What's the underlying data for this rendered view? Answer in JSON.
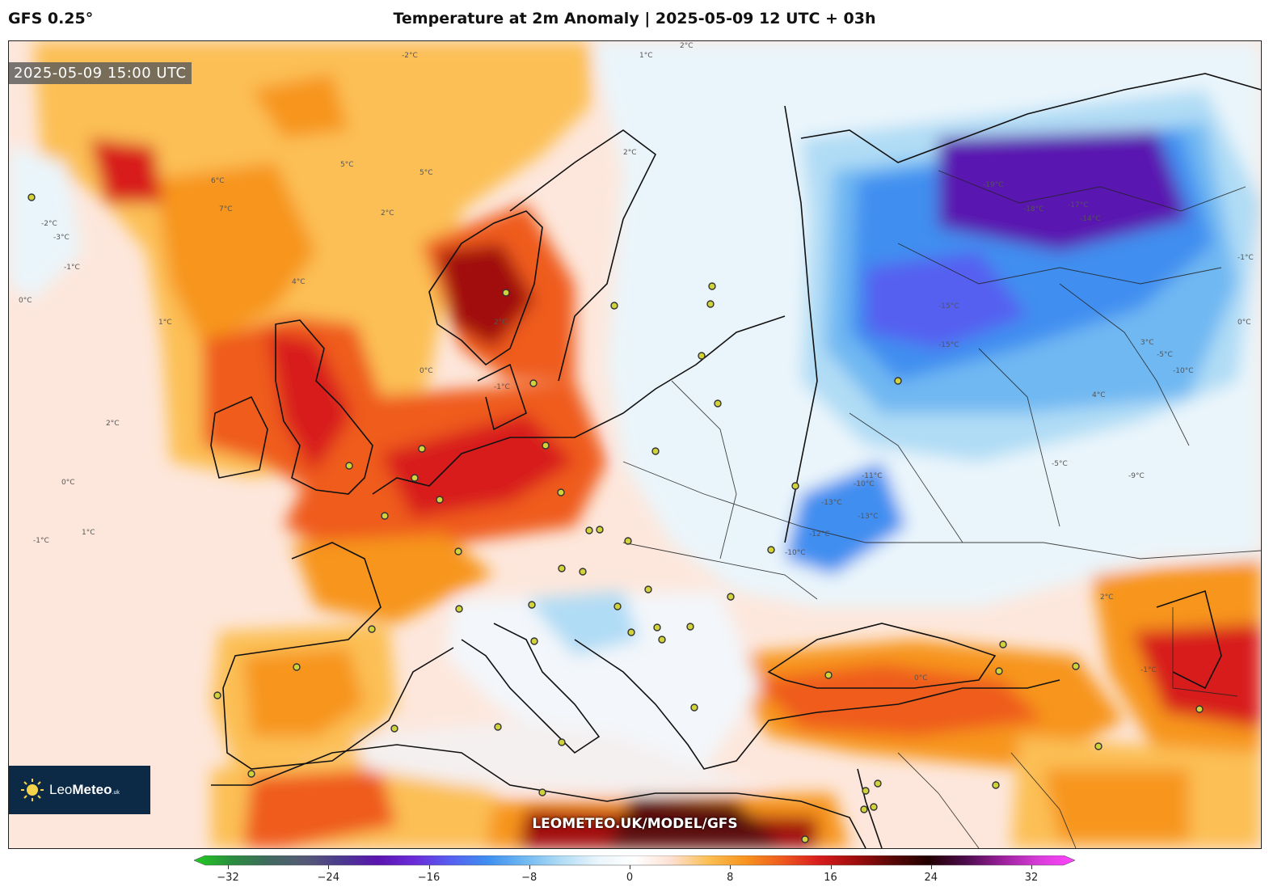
{
  "header": {
    "model": "GFS 0.25°",
    "title": "Temperature at 2m Anomaly | 2025-05-09 12 UTC + 03h"
  },
  "map": {
    "valid_time": "2025-05-09 15:00 UTC",
    "watermark": "LEOMETEO.UK/MODEL/GFS",
    "logo": {
      "name": "LeoMeteo",
      "brand_a": "Leo",
      "brand_b": "Meteo",
      "suffix": ".uk"
    },
    "contour_labels": [
      "-2°C",
      "2°C",
      "5°C",
      "6°C",
      "5°C",
      "7°C",
      "-2°C",
      "-3°C",
      "-1°C",
      "0°C",
      "2°C",
      "4°C",
      "2°C",
      "1°C",
      "0°C",
      "-1°C",
      "1°C",
      "2°C",
      "0°C",
      "-1°C",
      "2°C",
      "1°C",
      "-19°C",
      "-18°C",
      "-17°C",
      "-14°C",
      "-15°C",
      "-15°C",
      "-13°C",
      "-12°C",
      "-10°C",
      "-13°C",
      "-10°C",
      "-11°C",
      "-5°C",
      "-9°C",
      "-5°C",
      "-10°C",
      "3°C",
      "4°C",
      "-1°C",
      "0°C",
      "2°C",
      "-1°C",
      "0°C"
    ]
  },
  "colorbar": {
    "min": -32,
    "max": 32,
    "tick_values": [
      -32,
      -24,
      -16,
      -8,
      0,
      8,
      16,
      24,
      32
    ],
    "tick_labels": [
      "−32",
      "−24",
      "−16",
      "−8",
      "0",
      "8",
      "16",
      "24",
      "32"
    ],
    "stops": [
      "#22cc22",
      "#2a8f3d",
      "#3f6a5e",
      "#555a74",
      "#4b3a8e",
      "#5a14b0",
      "#6a2bd8",
      "#5560f0",
      "#3f8ef0",
      "#6fb8f2",
      "#b0dcf5",
      "#eaf5fb",
      "#ffffff",
      "#fde0d3",
      "#fcbf54",
      "#f7951f",
      "#ef5b1e",
      "#d81d1d",
      "#a10d0d",
      "#5a0707",
      "#220000",
      "#4a0b4a",
      "#9a1f9a",
      "#d83cd8",
      "#ff44ff"
    ]
  }
}
